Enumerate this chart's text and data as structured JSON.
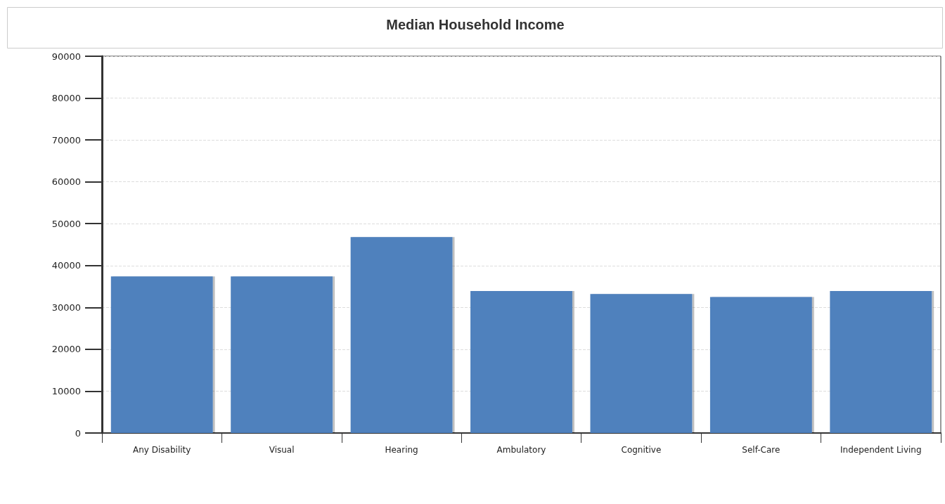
{
  "chart_data": {
    "type": "bar",
    "title": "Median Household Income",
    "categories": [
      "Any Disability",
      "Visual",
      "Hearing",
      "Ambulatory",
      "Cognitive",
      "Self-Care",
      "Independent Living"
    ],
    "values": [
      37400,
      37400,
      46800,
      33900,
      33200,
      32500,
      33900
    ],
    "color": "#4f81bd",
    "ylim": [
      0,
      90000
    ],
    "yticks": [
      0,
      10000,
      20000,
      30000,
      40000,
      50000,
      60000,
      70000,
      80000,
      90000
    ],
    "grid": "y"
  }
}
